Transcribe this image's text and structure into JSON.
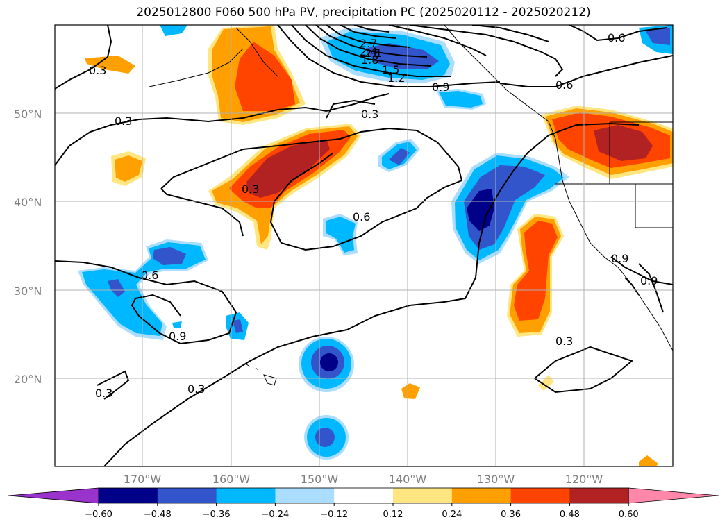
{
  "title": "2025012800 F060 500 hPa PV, precipitation PC (2025020112 - 2025020212)",
  "map": {
    "lat_labels": [
      "50°N",
      "40°N",
      "30°N",
      "20°N"
    ],
    "lon_labels": [
      "170°W",
      "160°W",
      "150°W",
      "140°W",
      "130°W",
      "120°W"
    ],
    "contour_labels": [
      "0.3",
      "0.3",
      "0.3",
      "0.3",
      "0.3",
      "0.3",
      "0.3",
      "0.6",
      "0.6",
      "0.6",
      "0.6",
      "0.9",
      "0.9",
      "1.2",
      "1.5",
      "1.8",
      "2.1",
      "2.4",
      "2.7",
      "0.9",
      "0.9"
    ]
  },
  "colorbar": {
    "ticks": [
      "−0.60",
      "−0.48",
      "−0.36",
      "−0.24",
      "−0.12",
      "0.12",
      "0.24",
      "0.36",
      "0.48",
      "0.60"
    ],
    "colors": [
      "#9933cc",
      "#000088",
      "#3355cc",
      "#00b8ff",
      "#aaddff",
      "#ffffff",
      "#ffe680",
      "#ffa000",
      "#ff4400",
      "#b22222",
      "#ff88aa"
    ]
  }
}
